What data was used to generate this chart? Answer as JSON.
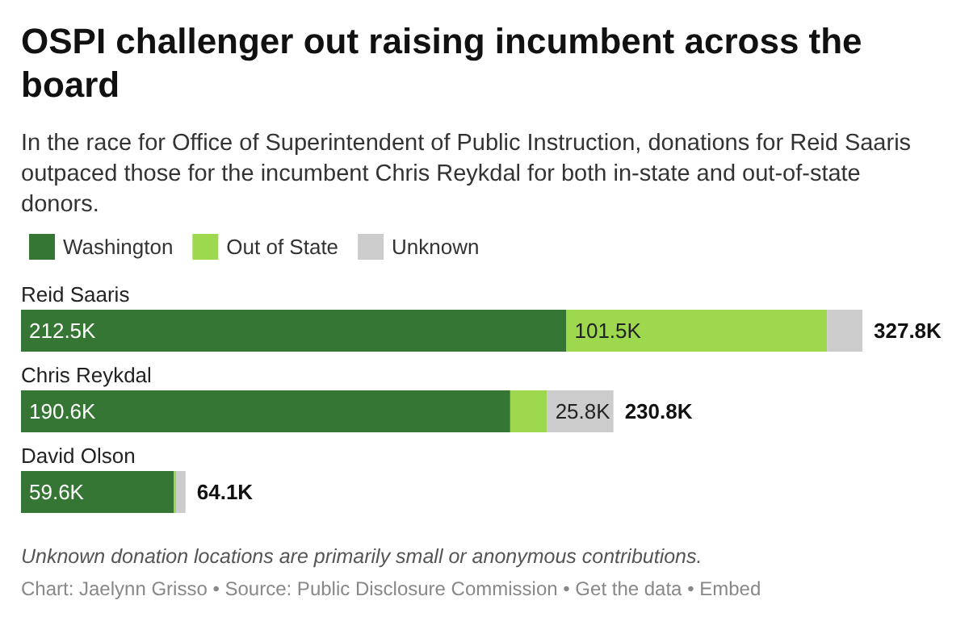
{
  "chart_data": {
    "type": "bar",
    "orientation": "horizontal",
    "stacked": true,
    "title": "OSPI challenger out raising incumbent across the board",
    "subtitle": "In the race for Office of Superintendent of Public Instruction, donations for Reid Saaris outpaced those for the incumbent Chris Reykdal for both in-state and out-of-state donors.",
    "categories": [
      "Reid Saaris",
      "Chris Reykdal",
      "David Olson"
    ],
    "series": [
      {
        "name": "Washington",
        "color": "#367634",
        "values": [
          212.5,
          190.6,
          59.6
        ],
        "value_labels": [
          "212.5K",
          "190.6K",
          "59.6K"
        ]
      },
      {
        "name": "Out of State",
        "color": "#9dd84f",
        "values": [
          101.5,
          14.4,
          0.8
        ],
        "value_labels": [
          "101.5K",
          null,
          null
        ]
      },
      {
        "name": "Unknown",
        "color": "#cccccc",
        "values": [
          13.8,
          25.8,
          3.7
        ],
        "value_labels": [
          null,
          "25.8K",
          null
        ]
      }
    ],
    "totals": [
      "327.8K",
      "230.8K",
      "64.1K"
    ],
    "legend": "top left",
    "annotations": [
      "Unknown donation locations are primarily small or anonymous contributions.",
      "Chart: Jaelynn Grisso • Source: Public Disclosure Commission • Get the data • Embed"
    ]
  }
}
